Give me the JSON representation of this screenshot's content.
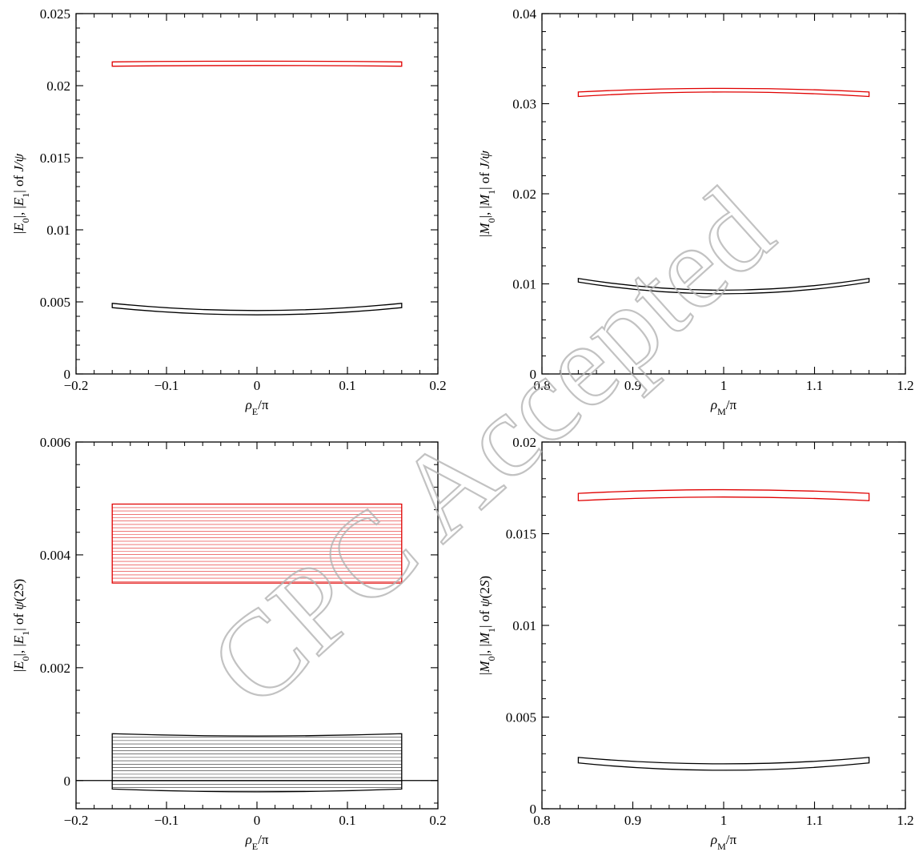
{
  "watermark": "CPC Accepted",
  "chart_data": [
    {
      "type": "area",
      "xlabel": "ρE/π",
      "xlabel_parts": [
        {
          "t": "ρ",
          "i": true
        },
        {
          "t": "E",
          "i": true,
          "sub": true
        },
        {
          "t": "/π",
          "i": false
        }
      ],
      "ylabel": "|E0|, |E1| of J/ψ",
      "ylabel_parts": [
        {
          "t": "|",
          "i": false
        },
        {
          "t": "E",
          "i": true
        },
        {
          "t": "0",
          "sub": true
        },
        {
          "t": "|, |",
          "i": false
        },
        {
          "t": "E",
          "i": true
        },
        {
          "t": "1",
          "sub": true
        },
        {
          "t": "| of ",
          "i": false
        },
        {
          "t": "J/ψ",
          "i": true
        }
      ],
      "xlim": [
        -0.2,
        0.2
      ],
      "ylim": [
        0,
        0.025
      ],
      "xticks": [
        -0.2,
        -0.1,
        0,
        0.1,
        0.2
      ],
      "xtick_labels": [
        "−0.2",
        "−0.1",
        "0",
        "0.1",
        "0.2"
      ],
      "yticks": [
        0,
        0.005,
        0.01,
        0.015,
        0.02,
        0.025
      ],
      "ytick_labels": [
        "0",
        "0.005",
        "0.01",
        "0.015",
        "0.02",
        "0.025"
      ],
      "zero_line": false,
      "bands": [
        {
          "color": "#e00000",
          "x_range": [
            -0.16,
            0.16
          ],
          "upper": [
            0.02165,
            0.0217,
            0.02165
          ],
          "lower": [
            0.02135,
            0.0214,
            0.02135
          ],
          "hatch": false
        },
        {
          "color": "#000000",
          "x_range": [
            -0.16,
            0.16
          ],
          "upper": [
            0.0049,
            0.0044,
            0.0049
          ],
          "lower": [
            0.0046,
            0.0041,
            0.0046
          ],
          "hatch": false
        }
      ]
    },
    {
      "type": "area",
      "xlabel": "ρM/π",
      "xlabel_parts": [
        {
          "t": "ρ",
          "i": true
        },
        {
          "t": "M",
          "i": true,
          "sub": true
        },
        {
          "t": "/π",
          "i": false
        }
      ],
      "ylabel": "|M0|, |M1| of J/ψ",
      "ylabel_parts": [
        {
          "t": "|",
          "i": false
        },
        {
          "t": "M",
          "i": true
        },
        {
          "t": "0",
          "sub": true
        },
        {
          "t": "|, |",
          "i": false
        },
        {
          "t": "M",
          "i": true
        },
        {
          "t": "1",
          "sub": true
        },
        {
          "t": "| of ",
          "i": false
        },
        {
          "t": "J/ψ",
          "i": true
        }
      ],
      "xlim": [
        0.8,
        1.2
      ],
      "ylim": [
        0,
        0.04
      ],
      "xticks": [
        0.8,
        0.9,
        1,
        1.1,
        1.2
      ],
      "xtick_labels": [
        "0.8",
        "0.9",
        "1",
        "1.1",
        "1.2"
      ],
      "yticks": [
        0,
        0.01,
        0.02,
        0.03,
        0.04
      ],
      "ytick_labels": [
        "0",
        "0.01",
        "0.02",
        "0.03",
        "0.04"
      ],
      "zero_line": false,
      "bands": [
        {
          "color": "#e00000",
          "x_range": [
            0.84,
            1.16
          ],
          "upper": [
            0.0313,
            0.0317,
            0.0313
          ],
          "lower": [
            0.0308,
            0.0313,
            0.0308
          ],
          "hatch": false
        },
        {
          "color": "#000000",
          "x_range": [
            0.84,
            1.16
          ],
          "upper": [
            0.0106,
            0.0093,
            0.0106
          ],
          "lower": [
            0.0102,
            0.0089,
            0.0102
          ],
          "hatch": false
        }
      ]
    },
    {
      "type": "area",
      "xlabel": "ρE/π",
      "xlabel_parts": [
        {
          "t": "ρ",
          "i": true
        },
        {
          "t": "E",
          "i": true,
          "sub": true
        },
        {
          "t": "/π",
          "i": false
        }
      ],
      "ylabel": "|E0|, |E1| of ψ(2S)",
      "ylabel_parts": [
        {
          "t": "|",
          "i": false
        },
        {
          "t": "E",
          "i": true
        },
        {
          "t": "0",
          "sub": true
        },
        {
          "t": "|, |",
          "i": false
        },
        {
          "t": "E",
          "i": true
        },
        {
          "t": "1",
          "sub": true
        },
        {
          "t": "| of ",
          "i": false
        },
        {
          "t": "ψ",
          "i": true
        },
        {
          "t": "(2",
          "i": false
        },
        {
          "t": "S",
          "i": true
        },
        {
          "t": ")",
          "i": false
        }
      ],
      "xlim": [
        -0.2,
        0.2
      ],
      "ylim": [
        -0.0005,
        0.006
      ],
      "xticks": [
        -0.2,
        -0.1,
        0,
        0.1,
        0.2
      ],
      "xtick_labels": [
        "−0.2",
        "−0.1",
        "0",
        "0.1",
        "0.2"
      ],
      "yticks": [
        0,
        0.002,
        0.004,
        0.006
      ],
      "ytick_labels": [
        "0",
        "0.002",
        "0.004",
        "0.006"
      ],
      "zero_line": true,
      "bands": [
        {
          "color": "#e00000",
          "x_range": [
            -0.16,
            0.16
          ],
          "upper": [
            0.0049,
            0.0049,
            0.0049
          ],
          "lower": [
            0.0035,
            0.0035,
            0.0035
          ],
          "hatch": true
        },
        {
          "color": "#000000",
          "x_range": [
            -0.16,
            0.16
          ],
          "upper": [
            0.00083,
            0.00079,
            0.00083
          ],
          "lower": [
            -0.00015,
            -0.0002,
            -0.00015
          ],
          "hatch": true
        }
      ]
    },
    {
      "type": "area",
      "xlabel": "ρM/π",
      "xlabel_parts": [
        {
          "t": "ρ",
          "i": true
        },
        {
          "t": "M",
          "i": true,
          "sub": true
        },
        {
          "t": "/π",
          "i": false
        }
      ],
      "ylabel": "|M0|, |M1| of ψ(2S)",
      "ylabel_parts": [
        {
          "t": "|",
          "i": false
        },
        {
          "t": "M",
          "i": true
        },
        {
          "t": "0",
          "sub": true
        },
        {
          "t": "|, |",
          "i": false
        },
        {
          "t": "M",
          "i": true
        },
        {
          "t": "1",
          "sub": true
        },
        {
          "t": "| of ",
          "i": false
        },
        {
          "t": "ψ",
          "i": true
        },
        {
          "t": "(2",
          "i": false
        },
        {
          "t": "S",
          "i": true
        },
        {
          "t": ")",
          "i": false
        }
      ],
      "xlim": [
        0.8,
        1.2
      ],
      "ylim": [
        0,
        0.02
      ],
      "xticks": [
        0.8,
        0.9,
        1,
        1.1,
        1.2
      ],
      "xtick_labels": [
        "0.8",
        "0.9",
        "1",
        "1.1",
        "1.2"
      ],
      "yticks": [
        0,
        0.005,
        0.01,
        0.015,
        0.02
      ],
      "ytick_labels": [
        "0",
        "0.005",
        "0.01",
        "0.015",
        "0.02"
      ],
      "zero_line": false,
      "bands": [
        {
          "color": "#e00000",
          "x_range": [
            0.84,
            1.16
          ],
          "upper": [
            0.0172,
            0.0174,
            0.0172
          ],
          "lower": [
            0.0168,
            0.017,
            0.0168
          ],
          "hatch": false
        },
        {
          "color": "#000000",
          "x_range": [
            0.84,
            1.16
          ],
          "upper": [
            0.0028,
            0.00245,
            0.0028
          ],
          "lower": [
            0.0025,
            0.0021,
            0.0025
          ],
          "hatch": false
        }
      ]
    }
  ]
}
